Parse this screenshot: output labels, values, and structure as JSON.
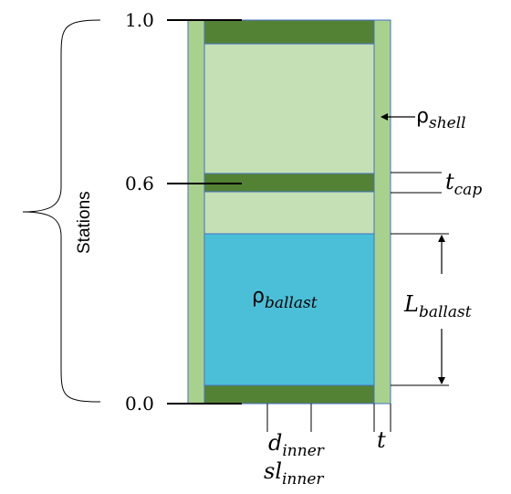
{
  "stations": {
    "brace_label": "Stations",
    "top": "1.0",
    "mid": "0.6",
    "bottom": "0.0"
  },
  "labels": {
    "rho_shell": {
      "base": "ρ",
      "sub": "shell"
    },
    "t_cap": {
      "base": "t",
      "sub": "cap"
    },
    "l_ballast": {
      "base": "L",
      "sub": "ballast"
    },
    "rho_ballast": {
      "base": "ρ",
      "sub": "ballast"
    },
    "d_inner": {
      "base": "d",
      "sub": "inner"
    },
    "sl_inner": {
      "base": "sl",
      "sub": "inner"
    },
    "t": "t"
  },
  "colors": {
    "wall": "#a9d18e",
    "cap": "#548235",
    "shell_fill": "#c5e0b4",
    "ballast": "#4bbfd7",
    "outline": "#4472c4"
  }
}
